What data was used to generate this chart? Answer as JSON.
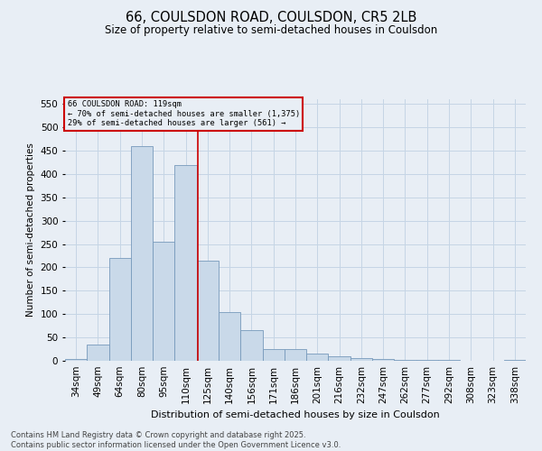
{
  "title_line1": "66, COULSDON ROAD, COULSDON, CR5 2LB",
  "title_line2": "Size of property relative to semi-detached houses in Coulsdon",
  "xlabel": "Distribution of semi-detached houses by size in Coulsdon",
  "ylabel": "Number of semi-detached properties",
  "footnote": "Contains HM Land Registry data © Crown copyright and database right 2025.\nContains public sector information licensed under the Open Government Licence v3.0.",
  "bin_labels": [
    "34sqm",
    "49sqm",
    "64sqm",
    "80sqm",
    "95sqm",
    "110sqm",
    "125sqm",
    "140sqm",
    "156sqm",
    "171sqm",
    "186sqm",
    "201sqm",
    "216sqm",
    "232sqm",
    "247sqm",
    "262sqm",
    "277sqm",
    "292sqm",
    "308sqm",
    "323sqm",
    "338sqm"
  ],
  "bar_values": [
    3,
    35,
    220,
    460,
    255,
    420,
    215,
    105,
    65,
    25,
    25,
    15,
    10,
    5,
    3,
    2,
    1,
    1,
    0,
    0,
    1
  ],
  "bar_color": "#c9d9e9",
  "bar_edge_color": "#7799bb",
  "grid_color": "#c5d5e5",
  "background_color": "#e8eef5",
  "vline_color": "#cc0000",
  "vline_label": "66 COULSDON ROAD: 119sqm",
  "annotation_smaller": "← 70% of semi-detached houses are smaller (1,375)",
  "annotation_larger": "29% of semi-detached houses are larger (561) →",
  "annotation_box_edge_color": "#cc0000",
  "ylim": [
    0,
    560
  ],
  "yticks": [
    0,
    50,
    100,
    150,
    200,
    250,
    300,
    350,
    400,
    450,
    500,
    550
  ]
}
